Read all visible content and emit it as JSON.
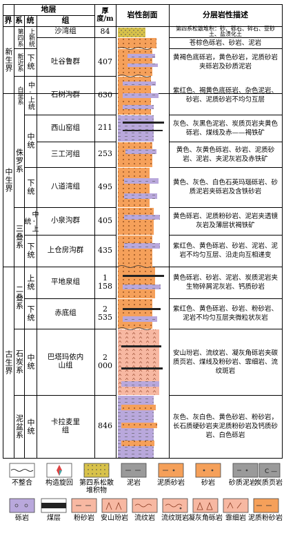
{
  "headers": {
    "stratum": "地层",
    "jie": "界",
    "xi": "系",
    "tong": "统",
    "zu": "组",
    "thickness": "厚度/m",
    "section": "岩性剖面",
    "description": "分层岩性描述"
  },
  "eras": [
    {
      "label": "新生界"
    },
    {
      "label": "中生界"
    },
    {
      "label": "古生界"
    }
  ],
  "systems": [
    {
      "label": "第四系"
    },
    {
      "label": "新近系"
    },
    {
      "label": "白垩系"
    },
    {
      "label": "侏罗系"
    },
    {
      "label": "三叠系"
    },
    {
      "label": "二叠系"
    },
    {
      "label": "石炭系"
    },
    {
      "label": "泥盆系"
    }
  ],
  "series": [
    {
      "label": "上新统"
    },
    {
      "label": "下统"
    },
    {
      "label": "中-上统"
    },
    {
      "label": "中统"
    },
    {
      "label": "下统"
    },
    {
      "label": "中-上统"
    },
    {
      "label": "下统"
    },
    {
      "label": "上统"
    },
    {
      "label": "下统"
    },
    {
      "label": "中统"
    },
    {
      "label": "中统"
    }
  ],
  "formations": [
    {
      "name": "沙湾组",
      "thickness": "84",
      "description": "第四系松散堆积：砂、砾石、碎石、亚砂土、盐渍化土"
    },
    {
      "name": "",
      "thickness": "",
      "description": "苍棕色砾岩、砂岩、泥岩"
    },
    {
      "name": "吐谷鲁群",
      "thickness": "407",
      "description": "黄褐色底砾岩，黄色砂岩，泥质砂岩夹砾岩及砂质泥岩"
    },
    {
      "name": "石树沟群",
      "thickness": "630",
      "description": "紫红色、褐黄色底砾岩、杂色泥岩、砂岩、泥质砂岩不均匀互层"
    },
    {
      "name": "西山窑组",
      "thickness": "211",
      "description": "灰色、灰黑色泥岩、炭质页岩夹黄色砾岩、煤线及赤——褐铁矿"
    },
    {
      "name": "三工河组",
      "thickness": "253",
      "description": "黄色、灰黄色砾岩、砂岩、泥质砂岩、泥岩、夹泥灰岩及赤铁矿"
    },
    {
      "name": "八道湾组",
      "thickness": "495",
      "description": "黄色、灰色、白色石英玛瑙砾岩、砂质泥岩夹砾岩及含铁砂岩"
    },
    {
      "name": "小泉沟群",
      "thickness": "405",
      "description": "黄色砾岩、泥质粉砂岩、泥岩夹透镜灰岩及薄层状褐铁矿"
    },
    {
      "name": "上仓房沟群",
      "thickness": "435",
      "description": "紫红色、黄色砾岩、砂岩、泥岩、泥岩不均匀互层、沿走向互相递变"
    },
    {
      "name": "平地泉组",
      "thickness": "1 158",
      "description": "黄色砾岩、砂岩、泥岩、炭质泥岩夹生物碎屑泥灰岩、钙质砂岩"
    },
    {
      "name": "赤底组",
      "thickness": "2 535",
      "description": "紫红色、黄色砾岩、砂岩、粉砂岩、泥岩不均匀互层夹微粒状灰岩"
    },
    {
      "name": "巴塔玛依内山组",
      "thickness": "2 000",
      "description": "安山玢岩、流纹岩、凝灰角砾岩夹碳质页岩、煤线及粉砂岩、霏细岩、流纹斑岩"
    },
    {
      "name": "卡拉麦里组",
      "thickness": "846",
      "description": "灰色、灰白色、黄色砂岩、粉砂岩，长石质硬砂岩夹泥质粉砂岩及钙质砂岩、白色砾岩"
    }
  ],
  "legend": [
    {
      "label": "不整合",
      "icon": "unconformity-wave"
    },
    {
      "label": "构造旋回",
      "icon": "tectonic-cycle"
    },
    {
      "label": "第四系松散堆积物",
      "icon": "quaternary-loose-deposits"
    },
    {
      "label": "泥岩",
      "icon": "mudstone"
    },
    {
      "label": "泥质砂岩",
      "icon": "argillaceous-sandstone"
    },
    {
      "label": "砂岩",
      "icon": "sandstone"
    },
    {
      "label": "砂质泥岩",
      "icon": "sandy-mudstone"
    },
    {
      "label": "炭质页岩",
      "icon": "carbonaceous-shale"
    },
    {
      "label": "砾岩",
      "icon": "conglomerate"
    },
    {
      "label": "煤层",
      "icon": "coal-seam"
    },
    {
      "label": "粉砂岩",
      "icon": "siltstone"
    },
    {
      "label": "安山玢岩",
      "icon": "andesite-porphyrite"
    },
    {
      "label": "流纹岩",
      "icon": "rhyolite"
    },
    {
      "label": "流纹斑岩",
      "icon": "rhyolite-porphyry"
    },
    {
      "label": "凝灰角砾岩",
      "icon": "tuff-breccia"
    },
    {
      "label": "霏细岩",
      "icon": "felsite"
    },
    {
      "label": "泥质粉砂岩",
      "icon": "argillaceous-siltstone"
    }
  ],
  "colors": {
    "orange": "#f5a05a",
    "purple": "#b9a8dc",
    "pink": "#f7b8a2",
    "coal": "#222222",
    "gray": "#9a9a9a",
    "yellow": "#d8c24a"
  }
}
